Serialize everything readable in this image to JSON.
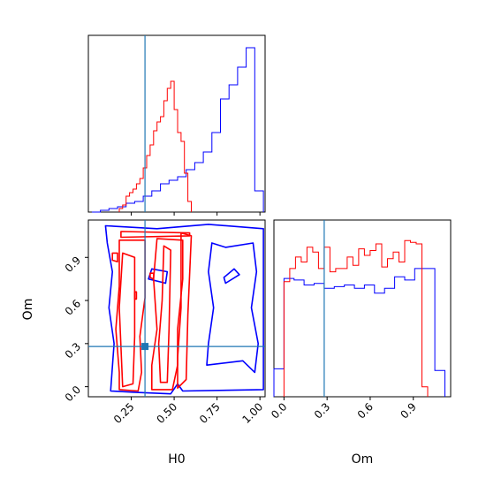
{
  "chart_data": {
    "type": "corner",
    "parameters": [
      "H0",
      "Om"
    ],
    "truth": {
      "H0": 0.33,
      "Om": 0.28
    },
    "colors": {
      "series_a": "#0000ff",
      "series_b": "#ff0000",
      "truth": "#1f77b4"
    },
    "series_names": [
      "blue",
      "red"
    ],
    "ticks": {
      "H0": [
        "0.25",
        "0.50",
        "0.75",
        "1.00"
      ],
      "Om": [
        "0.0",
        "0.3",
        "0.6",
        "0.9"
      ]
    },
    "ranges": {
      "H0": [
        0.0,
        1.03
      ],
      "Om": [
        -0.07,
        1.16
      ]
    },
    "hist_H0": {
      "edges": [
        0.02,
        0.07,
        0.12,
        0.17,
        0.22,
        0.27,
        0.32,
        0.37,
        0.42,
        0.47,
        0.52,
        0.57,
        0.62,
        0.67,
        0.72,
        0.77,
        0.82,
        0.87,
        0.92,
        0.97,
        1.02
      ],
      "blue": [
        0.0,
        0.01,
        0.02,
        0.03,
        0.05,
        0.06,
        0.09,
        0.12,
        0.16,
        0.18,
        0.2,
        0.24,
        0.28,
        0.34,
        0.45,
        0.64,
        0.72,
        0.82,
        0.93,
        0.12
      ],
      "red_edges": [
        0.18,
        0.2,
        0.22,
        0.24,
        0.26,
        0.28,
        0.3,
        0.32,
        0.34,
        0.36,
        0.38,
        0.4,
        0.42,
        0.44,
        0.46,
        0.48,
        0.5,
        0.52,
        0.54,
        0.56,
        0.58,
        0.6
      ],
      "red": [
        0.02,
        0.04,
        0.09,
        0.11,
        0.13,
        0.16,
        0.19,
        0.25,
        0.32,
        0.38,
        0.46,
        0.51,
        0.54,
        0.63,
        0.7,
        0.74,
        0.58,
        0.45,
        0.4,
        0.22,
        0.06
      ]
    },
    "hist_Om": {
      "edges": [
        -0.07,
        0.0,
        0.07,
        0.14,
        0.21,
        0.28,
        0.35,
        0.42,
        0.49,
        0.56,
        0.63,
        0.7,
        0.77,
        0.84,
        0.91,
        0.98,
        1.05,
        1.12
      ],
      "blue": [
        0.17,
        0.72,
        0.71,
        0.68,
        0.69,
        0.66,
        0.67,
        0.68,
        0.66,
        0.68,
        0.63,
        0.66,
        0.73,
        0.71,
        0.78,
        0.78,
        0.16
      ],
      "red_edges": [
        0.0,
        0.04,
        0.08,
        0.12,
        0.16,
        0.2,
        0.24,
        0.28,
        0.32,
        0.36,
        0.4,
        0.44,
        0.48,
        0.52,
        0.56,
        0.6,
        0.64,
        0.68,
        0.72,
        0.76,
        0.8,
        0.84,
        0.88,
        0.92,
        0.96,
        1.0
      ],
      "red": [
        0.7,
        0.78,
        0.85,
        0.82,
        0.91,
        0.88,
        0.78,
        0.91,
        0.76,
        0.78,
        0.78,
        0.85,
        0.8,
        0.9,
        0.86,
        0.89,
        0.93,
        0.79,
        0.84,
        0.88,
        0.82,
        0.95,
        0.94,
        0.93,
        0.06
      ]
    },
    "contours": {
      "red": [
        [
          [
            0.18,
            -0.02
          ],
          [
            0.29,
            -0.03
          ],
          [
            0.31,
            0.1
          ],
          [
            0.3,
            0.35
          ],
          [
            0.33,
            0.62
          ],
          [
            0.33,
            1.02
          ],
          [
            0.18,
            1.02
          ],
          [
            0.18,
            0.7
          ],
          [
            0.16,
            0.4
          ],
          [
            0.18,
            0.1
          ]
        ],
        [
          [
            0.2,
            0.0
          ],
          [
            0.26,
            0.02
          ],
          [
            0.27,
            0.35
          ],
          [
            0.27,
            0.9
          ],
          [
            0.2,
            0.93
          ],
          [
            0.18,
            0.55
          ]
        ],
        [
          [
            0.37,
            -0.02
          ],
          [
            0.49,
            -0.02
          ],
          [
            0.52,
            0.15
          ],
          [
            0.52,
            0.4
          ],
          [
            0.55,
            0.75
          ],
          [
            0.55,
            1.02
          ],
          [
            0.4,
            1.03
          ],
          [
            0.38,
            0.75
          ],
          [
            0.4,
            0.4
          ],
          [
            0.37,
            0.15
          ]
        ],
        [
          [
            0.42,
            0.03
          ],
          [
            0.46,
            0.03
          ],
          [
            0.47,
            0.4
          ],
          [
            0.48,
            0.95
          ],
          [
            0.44,
            0.98
          ],
          [
            0.43,
            0.6
          ],
          [
            0.41,
            0.3
          ]
        ],
        [
          [
            0.52,
            -0.01
          ],
          [
            0.57,
            0.05
          ],
          [
            0.58,
            0.5
          ],
          [
            0.6,
            1.05
          ],
          [
            0.54,
            1.07
          ],
          [
            0.54,
            0.55
          ],
          [
            0.52,
            0.2
          ]
        ],
        [
          [
            0.19,
            1.04
          ],
          [
            0.59,
            1.05
          ],
          [
            0.59,
            1.07
          ],
          [
            0.19,
            1.08
          ]
        ],
        [
          [
            0.14,
            0.88
          ],
          [
            0.17,
            0.87
          ],
          [
            0.17,
            0.93
          ],
          [
            0.14,
            0.93
          ]
        ],
        [
          [
            0.36,
            0.76
          ],
          [
            0.38,
            0.75
          ],
          [
            0.38,
            0.79
          ],
          [
            0.36,
            0.79
          ]
        ],
        [
          [
            0.27,
            0.61
          ],
          [
            0.28,
            0.61
          ],
          [
            0.28,
            0.66
          ],
          [
            0.27,
            0.66
          ]
        ]
      ],
      "blue": [
        [
          [
            0.1,
            1.12
          ],
          [
            0.4,
            1.1
          ],
          [
            0.7,
            1.13
          ],
          [
            1.02,
            1.1
          ],
          [
            1.02,
            -0.02
          ],
          [
            0.55,
            -0.03
          ],
          [
            0.52,
            0.02
          ],
          [
            0.48,
            -0.05
          ],
          [
            0.28,
            -0.04
          ],
          [
            0.13,
            -0.03
          ],
          [
            0.15,
            0.3
          ],
          [
            0.12,
            0.55
          ],
          [
            0.14,
            0.8
          ],
          [
            0.11,
            1.0
          ]
        ],
        [
          [
            0.69,
            0.15
          ],
          [
            0.9,
            0.18
          ],
          [
            0.97,
            0.1
          ],
          [
            0.99,
            0.3
          ],
          [
            0.95,
            0.55
          ],
          [
            0.98,
            0.8
          ],
          [
            0.96,
            1.0
          ],
          [
            0.8,
            0.97
          ],
          [
            0.72,
            1.0
          ],
          [
            0.7,
            0.8
          ],
          [
            0.73,
            0.55
          ],
          [
            0.7,
            0.3
          ]
        ],
        [
          [
            0.8,
            0.72
          ],
          [
            0.88,
            0.78
          ],
          [
            0.85,
            0.82
          ],
          [
            0.79,
            0.76
          ]
        ],
        [
          [
            0.35,
            0.75
          ],
          [
            0.45,
            0.72
          ],
          [
            0.46,
            0.8
          ],
          [
            0.37,
            0.82
          ]
        ]
      ]
    }
  }
}
